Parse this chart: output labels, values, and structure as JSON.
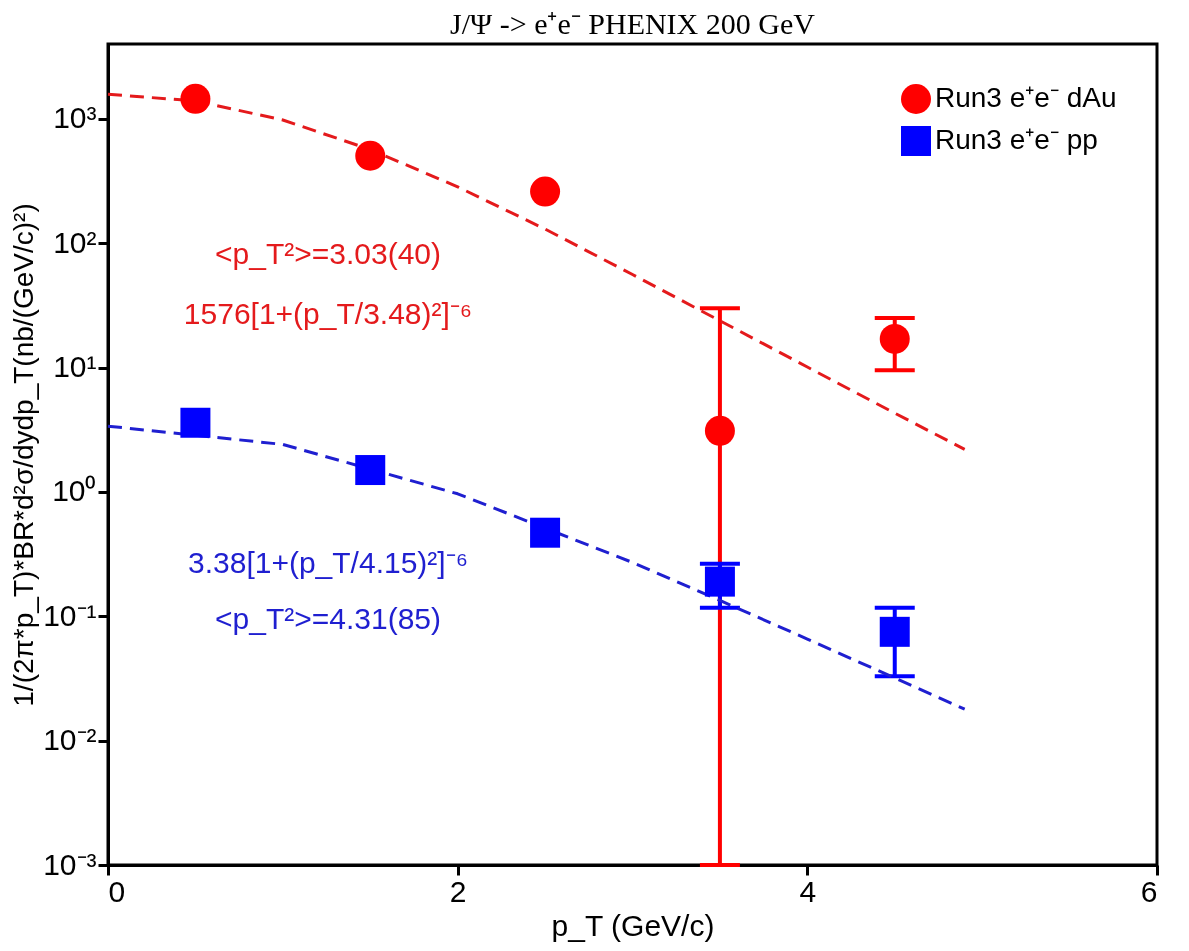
{
  "chart_data": {
    "type": "scatter",
    "title": "J/Ψ -> e⁺e⁻   PHENIX 200 GeV",
    "xlabel": "p_T (GeV/c)",
    "ylabel": "1/(2π*p_T)*BR*d²σ/dydp_T(nb/(GeV/c)²)",
    "log": "y",
    "grid": false,
    "legend": "top right",
    "xlim": [
      0,
      6
    ],
    "xticks": [
      0,
      2,
      4,
      6
    ],
    "ylim": [
      0.001,
      4000
    ],
    "yticks": [
      {
        "value": 0.001,
        "label": "10⁻³"
      },
      {
        "value": 0.01,
        "label": "10⁻²"
      },
      {
        "value": 0.1,
        "label": "10⁻¹"
      },
      {
        "value": 1,
        "label": "10⁰"
      },
      {
        "value": 10,
        "label": "10¹"
      },
      {
        "value": 100,
        "label": "10²"
      },
      {
        "value": 1000,
        "label": "10³"
      }
    ],
    "series": [
      {
        "name": "Run3 e⁺e⁻ dAu",
        "type": "scatter",
        "marker": "circle",
        "color": "#ff0000",
        "x": [
          0.5,
          1.5,
          2.5,
          3.5,
          4.5
        ],
        "values": [
          1450,
          505,
          260,
          3.1,
          17
        ],
        "errors": [
          null,
          null,
          null,
          [
            0.001,
            30
          ],
          [
            9.5,
            25
          ]
        ]
      },
      {
        "name": "Run3 e⁺e⁻ pp",
        "type": "scatter",
        "marker": "square",
        "color": "#0000ff",
        "x": [
          0.5,
          1.5,
          2.5,
          3.5,
          4.5
        ],
        "values": [
          3.6,
          1.5,
          0.47,
          0.19,
          0.075
        ],
        "errors": [
          null,
          null,
          null,
          [
            0.117,
            0.265
          ],
          [
            0.033,
            0.117
          ]
        ]
      },
      {
        "type": "line",
        "line_style": "dashed",
        "color": "#e41a1c",
        "x": [
          0,
          0.5,
          1,
          1.5,
          2,
          2.5,
          3,
          3.5,
          4,
          4.5,
          4.9
        ],
        "values": [
          1576,
          1394,
          979,
          567,
          284,
          130,
          56,
          23.8,
          10.1,
          4.3,
          2.2
        ]
      },
      {
        "type": "line",
        "line_style": "dashed",
        "color": "#1f1fd0",
        "x": [
          0,
          1,
          2,
          3,
          3.5,
          4,
          4.5,
          4.9
        ],
        "values": [
          3.38,
          2.41,
          0.966,
          0.271,
          0.134,
          0.0656,
          0.0319,
          0.0179
        ]
      }
    ],
    "annotations": [
      "<p_T²>=3.03(40)",
      "1576[1+(p_T/3.48)²]⁻⁶",
      "3.38[1+(p_T/4.15)²]⁻⁶",
      "<p_T²>=4.31(85)"
    ]
  }
}
